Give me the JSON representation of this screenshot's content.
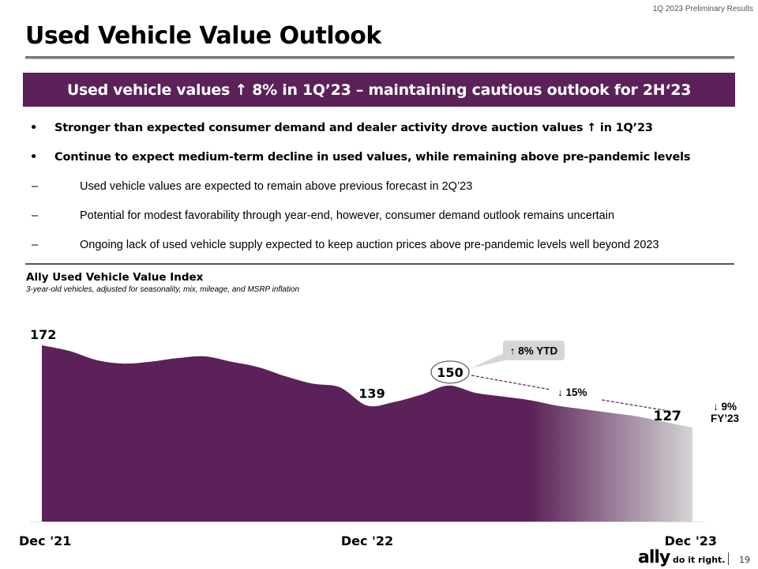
{
  "header": {
    "meta": "1Q 2023 Preliminary Results",
    "title": "Used Vehicle Value Outlook"
  },
  "banner": {
    "text": "Used vehicle values ↑ 8% in 1Q’23 – maintaining cautious outlook for 2H‘23"
  },
  "bullets": [
    {
      "mark": "•",
      "text": "Stronger than expected consumer demand and dealer activity drove auction values ↑ in 1Q’23"
    },
    {
      "mark": "•",
      "text": "Continue to expect medium-term decline in used values, while remaining above pre-pandemic levels"
    }
  ],
  "sub_bullets": [
    {
      "mark": "–",
      "text": "Used vehicle values are expected to remain above previous forecast in 2Q’23"
    },
    {
      "mark": "–",
      "text": "Potential for modest favorability through year-end, however, consumer demand outlook remains uncertain"
    },
    {
      "mark": "–",
      "text": "Ongoing lack of used vehicle supply expected to keep auction prices above pre-pandemic levels well beyond 2023"
    }
  ],
  "chart_data": {
    "type": "area",
    "title": "Ally Used Vehicle Value Index",
    "subtitle": "3-year-old vehicles, adjusted for seasonality, mix, mileage, and MSRP inflation",
    "x_tick_labels": [
      "Dec '21",
      "Dec '22",
      "Dec '23"
    ],
    "x": [
      "Dec '21",
      "Jan '22",
      "Feb '22",
      "Mar '22",
      "Apr '22",
      "May '22",
      "Jun '22",
      "Jul '22",
      "Aug '22",
      "Sep '22",
      "Oct '22",
      "Nov '22",
      "Dec '22",
      "Jan '23",
      "Feb '23",
      "Mar '23",
      "Apr '23",
      "May '23",
      "Jun '23",
      "Jul '23",
      "Aug '23",
      "Sep '23",
      "Oct '23",
      "Nov '23",
      "Dec '23"
    ],
    "values": [
      172,
      169,
      164,
      162,
      163,
      165,
      166,
      163,
      160,
      155,
      151,
      149,
      139,
      141,
      145,
      150,
      146,
      144,
      142,
      139,
      137,
      135,
      133,
      130,
      127
    ],
    "forecast_start_index": 18,
    "ylim": [
      75,
      175
    ],
    "data_labels": [
      {
        "index": 0,
        "text": "172"
      },
      {
        "index": 12,
        "text": "139"
      },
      {
        "index": 15,
        "text": "150"
      },
      {
        "index": 24,
        "text": "127"
      }
    ],
    "annotations": [
      {
        "text": "↑ 8% YTD",
        "target_index": 15
      },
      {
        "text": "↓ 15%",
        "from_index": 15,
        "to_index": 24
      },
      {
        "text": "↓ 9%",
        "line2": "FY’23",
        "target_index": 24
      }
    ],
    "colors": {
      "fill": "#5b2158",
      "forecast_fade": "#d4d4d4",
      "dashed": "#5b2158"
    }
  },
  "footer": {
    "logo": "ally",
    "tagline": "do it right.",
    "page_number": "19"
  }
}
